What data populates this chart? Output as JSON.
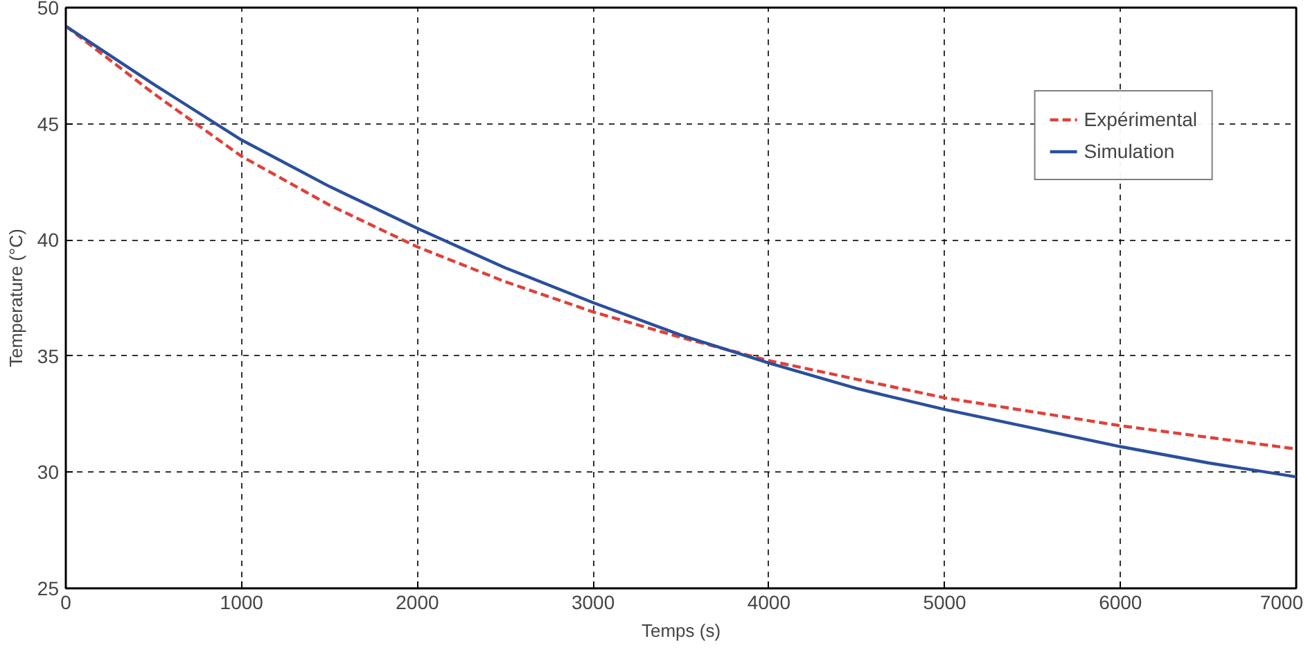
{
  "chart_data": {
    "type": "line",
    "xlabel": "Temps (s)",
    "ylabel": "Temperature (°C)",
    "xlim": [
      0,
      7000
    ],
    "ylim": [
      25,
      50
    ],
    "xticks": [
      0,
      1000,
      2000,
      3000,
      4000,
      5000,
      6000,
      7000
    ],
    "yticks": [
      25,
      30,
      35,
      40,
      45,
      50
    ],
    "grid": true,
    "legend": "top right",
    "series": [
      {
        "name": "Expérimental",
        "color": "#e0403a",
        "line_style": "dashed",
        "x": [
          0,
          500,
          1000,
          1500,
          2000,
          2500,
          3000,
          3500,
          4000,
          4500,
          5000,
          5500,
          6000,
          6500,
          7000
        ],
        "values": [
          49.2,
          46.3,
          43.6,
          41.5,
          39.7,
          38.2,
          36.9,
          35.8,
          34.8,
          34.0,
          33.2,
          32.6,
          32.0,
          31.5,
          31.0
        ]
      },
      {
        "name": "Simulation",
        "color": "#2a4f9c",
        "line_style": "solid",
        "x": [
          0,
          500,
          1000,
          1500,
          2000,
          2500,
          3000,
          3500,
          4000,
          4500,
          5000,
          5500,
          6000,
          6500,
          7000
        ],
        "values": [
          49.2,
          46.7,
          44.3,
          42.3,
          40.5,
          38.8,
          37.3,
          35.9,
          34.7,
          33.6,
          32.7,
          31.9,
          31.1,
          30.4,
          29.8
        ]
      }
    ]
  }
}
